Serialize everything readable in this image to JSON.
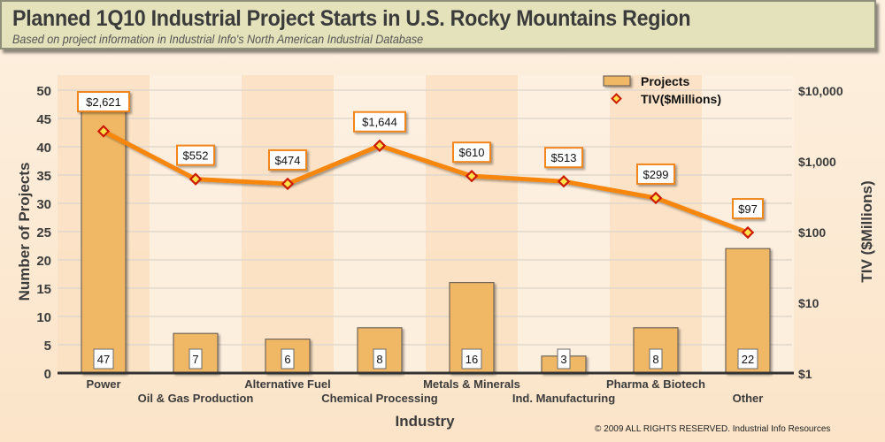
{
  "header": {
    "title": "Planned 1Q10 Industrial Project Starts in U.S. Rocky Mountains Region",
    "subtitle": "Based on project information in Industrial Info's North American Industrial Database"
  },
  "footer": {
    "copyright": "© 2009 ALL RIGHTS RESERVED. Industrial Info Resources"
  },
  "colors": {
    "bar_fill": "#f0b865",
    "bar_stroke": "#6f6559",
    "line": "#f7860f",
    "marker": "#cc1a00",
    "marker_center": "#ffe14a",
    "label_border": "#f0861a"
  },
  "chart_data": {
    "type": "bar",
    "title": "Planned 1Q10 Industrial Project Starts in U.S. Rocky Mountains Region",
    "xlabel": "Industry",
    "ylabel": "Number of Projects",
    "y2label": "TIV ($Millions)",
    "ylim": [
      0,
      50
    ],
    "yticks": [
      0,
      5,
      10,
      15,
      20,
      25,
      30,
      35,
      40,
      45,
      50
    ],
    "y2scale": "log",
    "y2lim": [
      1,
      10000
    ],
    "y2ticks": [
      {
        "value": 1,
        "label": "$1"
      },
      {
        "value": 10,
        "label": "$10"
      },
      {
        "value": 100,
        "label": "$100"
      },
      {
        "value": 1000,
        "label": "$1,000"
      },
      {
        "value": 10000,
        "label": "$10,000"
      }
    ],
    "grid": true,
    "legend_position": "top-right",
    "categories": [
      "Power",
      "Oil & Gas Production",
      "Alternative Fuel",
      "Chemical Processing",
      "Metals & Minerals",
      "Ind. Manufacturing",
      "Pharma & Biotech",
      "Other"
    ],
    "series": [
      {
        "name": "Projects",
        "type": "bar",
        "axis": "left",
        "values": [
          47,
          7,
          6,
          8,
          16,
          3,
          8,
          22
        ],
        "labels": [
          "47",
          "7",
          "6",
          "8",
          "16",
          "3",
          "8",
          "22"
        ]
      },
      {
        "name": "TIV($Millions)",
        "type": "line",
        "axis": "right",
        "values": [
          2621,
          552,
          474,
          1644,
          610,
          513,
          299,
          97
        ],
        "labels": [
          "$2,621",
          "$552",
          "$474",
          "$1,644",
          "$610",
          "$513",
          "$299",
          "$97"
        ]
      }
    ]
  }
}
